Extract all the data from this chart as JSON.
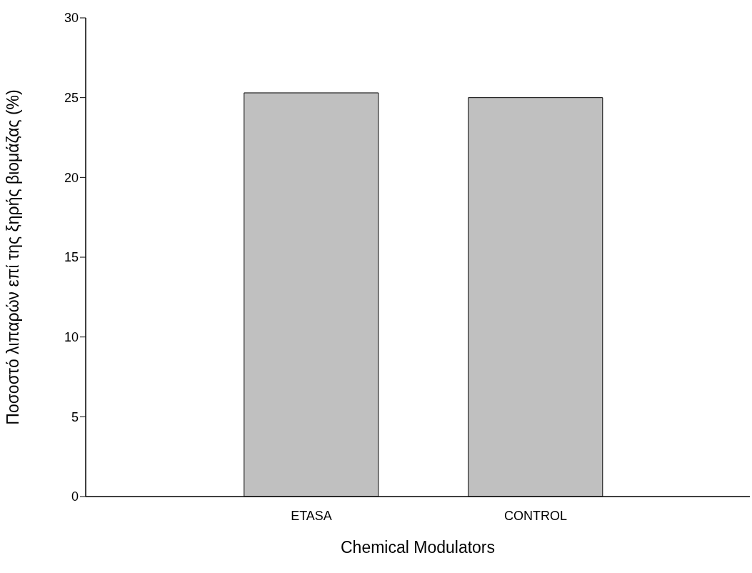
{
  "chart_data": {
    "type": "bar",
    "xlabel": "Chemical Modulators",
    "ylabel": "Ποσοστό λιπαρών επί της ξηρής βιομάζας (%)",
    "categories": [
      "ETASA",
      "CONTROL"
    ],
    "values": [
      25.3,
      25.0
    ],
    "color": "#c0c0c0",
    "ylim": [
      0,
      30
    ],
    "yticks": [
      0,
      5,
      10,
      15,
      20,
      25,
      30
    ],
    "grid": false,
    "legend": false
  }
}
